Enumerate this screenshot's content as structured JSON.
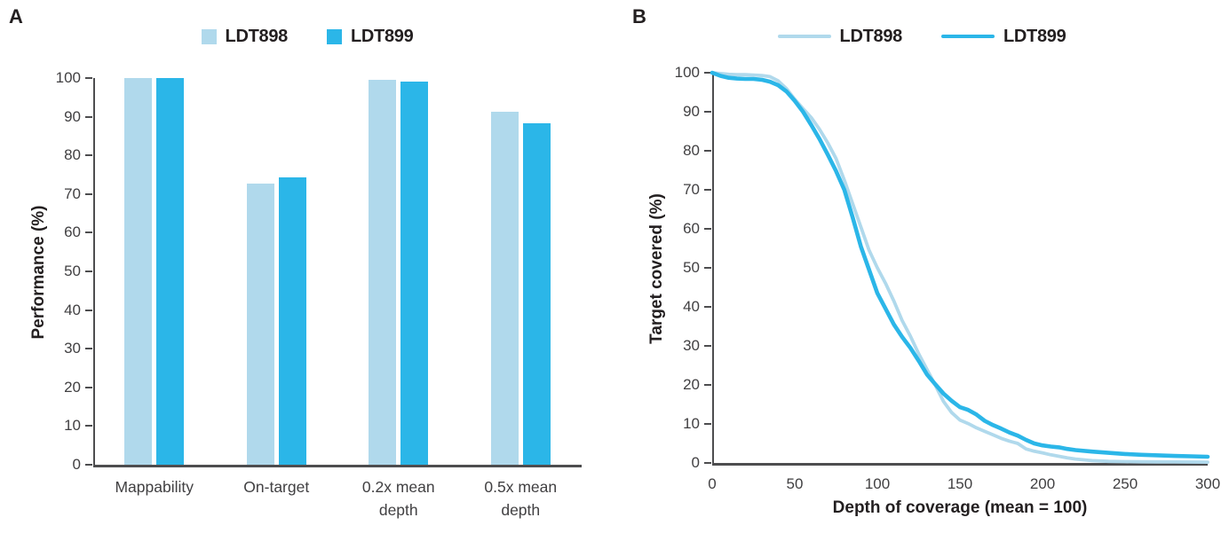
{
  "panel_a": {
    "label": "A",
    "y_axis_title": "Performance (%)"
  },
  "panel_b": {
    "label": "B",
    "y_axis_title": "Target covered (%)",
    "x_axis_title": "Depth of coverage (mean = 100)"
  },
  "colors": {
    "series_light": "#B0D9EC",
    "series_dark": "#2BB6E8",
    "axis": "#4D4D4F",
    "tick_text": "#414042",
    "title_text": "#231F20"
  },
  "chart_data": [
    {
      "type": "bar",
      "panel": "A",
      "title": "",
      "ylabel": "Performance (%)",
      "xlabel": "",
      "ylim": [
        0,
        100
      ],
      "yticks": [
        0,
        10,
        20,
        30,
        40,
        50,
        60,
        70,
        80,
        90,
        100
      ],
      "grid": false,
      "legend_position": "top-center",
      "categories": [
        "Mappability",
        "On-target",
        "0.2x mean\ndepth",
        "0.5x mean\ndepth"
      ],
      "series": [
        {
          "name": "LDT898",
          "color": "#B0D9EC",
          "values": [
            100,
            72.7,
            99.5,
            91.3
          ]
        },
        {
          "name": "LDT899",
          "color": "#2BB6E8",
          "values": [
            100,
            74.4,
            99.0,
            88.3
          ]
        }
      ]
    },
    {
      "type": "line",
      "panel": "B",
      "title": "",
      "ylabel": "Target covered (%)",
      "xlabel": "Depth of coverage (mean = 100)",
      "xlim": [
        0,
        300
      ],
      "ylim": [
        0,
        100
      ],
      "xticks": [
        0,
        50,
        100,
        150,
        200,
        250,
        300
      ],
      "yticks": [
        0,
        10,
        20,
        30,
        40,
        50,
        60,
        70,
        80,
        90,
        100
      ],
      "grid": false,
      "legend_position": "top-center",
      "x": [
        0,
        5,
        10,
        15,
        20,
        25,
        30,
        35,
        40,
        45,
        50,
        55,
        60,
        65,
        70,
        75,
        80,
        85,
        90,
        95,
        100,
        105,
        110,
        115,
        120,
        125,
        130,
        135,
        140,
        145,
        150,
        155,
        160,
        165,
        170,
        175,
        180,
        185,
        190,
        195,
        200,
        205,
        210,
        215,
        220,
        230,
        240,
        250,
        260,
        270,
        280,
        290,
        300
      ],
      "series": [
        {
          "name": "LDT898",
          "color": "#B0D9EC",
          "stroke_width": 3.8,
          "values": [
            100,
            99.8,
            99.6,
            99.5,
            99.5,
            99.4,
            99.3,
            99.0,
            97.9,
            95.9,
            93.2,
            90.8,
            88.5,
            85.5,
            82.0,
            78.0,
            72.5,
            66.5,
            60.5,
            54.5,
            50.0,
            46.0,
            41.5,
            36.5,
            32.5,
            28.0,
            24.0,
            20.0,
            15.8,
            12.9,
            11.0,
            10.1,
            9.0,
            8.1,
            7.2,
            6.3,
            5.6,
            5.0,
            3.6,
            3.0,
            2.6,
            2.1,
            1.7,
            1.3,
            1.0,
            0.6,
            0.4,
            0.35,
            0.3,
            0.28,
            0.25,
            0.22,
            0.2
          ]
        },
        {
          "name": "LDT899",
          "color": "#2BB6E8",
          "stroke_width": 4.6,
          "values": [
            100,
            99.2,
            98.7,
            98.5,
            98.4,
            98.4,
            98.2,
            97.7,
            96.8,
            95.2,
            92.8,
            90.0,
            86.6,
            83.0,
            79.0,
            74.8,
            70.0,
            63.0,
            55.5,
            49.5,
            43.5,
            39.5,
            35.5,
            32.3,
            29.5,
            26.2,
            22.7,
            20.2,
            17.8,
            15.9,
            14.3,
            13.6,
            12.4,
            10.8,
            9.7,
            8.8,
            7.8,
            7.0,
            5.9,
            5.0,
            4.5,
            4.2,
            4.0,
            3.6,
            3.3,
            2.9,
            2.6,
            2.3,
            2.1,
            1.95,
            1.8,
            1.7,
            1.6
          ]
        }
      ]
    }
  ]
}
